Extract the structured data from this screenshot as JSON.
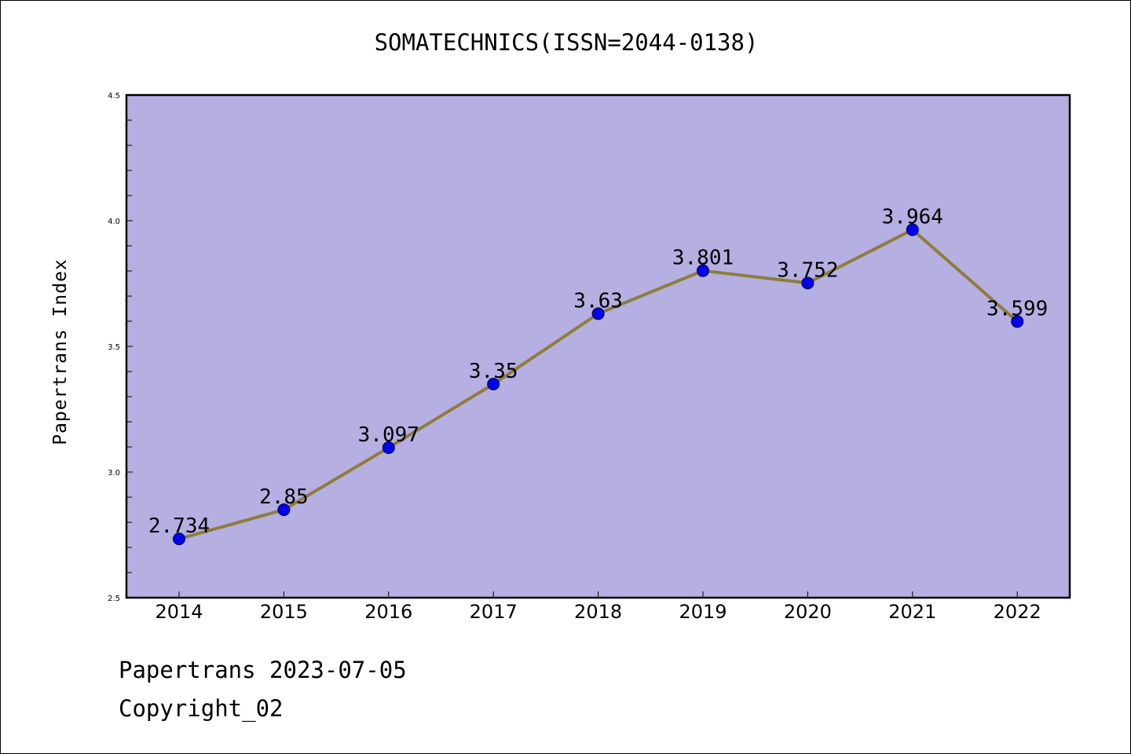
{
  "header": {
    "title": "SOMATECHNICS(ISSN=2044-0138)"
  },
  "footer": {
    "line1": "Papertrans 2023-07-05",
    "line2": "Copyright_02"
  },
  "colors": {
    "plot_background": "#b5afe2",
    "line": "#8e7d3a",
    "marker": "#0000ee",
    "frame": "#000000"
  },
  "chart_data": {
    "type": "line",
    "title": "SOMATECHNICS(ISSN=2044-0138)",
    "xlabel": "",
    "ylabel": "Papertrans Index",
    "categories": [
      "2014",
      "2015",
      "2016",
      "2017",
      "2018",
      "2019",
      "2020",
      "2021",
      "2022"
    ],
    "series": [
      {
        "values": [
          2.734,
          2.85,
          3.097,
          3.35,
          3.63,
          3.801,
          3.752,
          3.964,
          3.599
        ]
      }
    ],
    "data_labels": [
      "2.734",
      "2.85",
      "3.097",
      "3.35",
      "3.63",
      "3.801",
      "3.752",
      "3.964",
      "3.599"
    ],
    "ylim": [
      2.5,
      4.5
    ],
    "y_ticks": [
      "2.5",
      "3.0",
      "3.5",
      "4.0",
      "4.5"
    ],
    "y_minor_step": 0.1,
    "grid": false,
    "legend": "none"
  }
}
